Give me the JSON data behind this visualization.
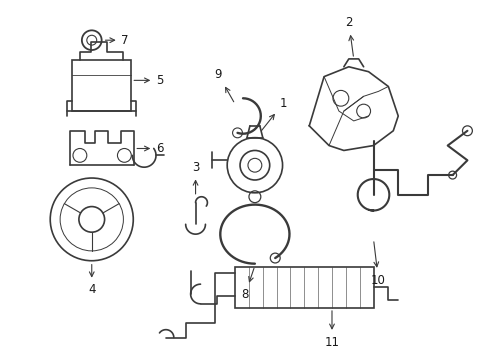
{
  "background": "#ffffff",
  "line_color": "#3a3a3a",
  "text_color": "#1a1a1a",
  "lw": 1.2,
  "fontsize": 8.5
}
